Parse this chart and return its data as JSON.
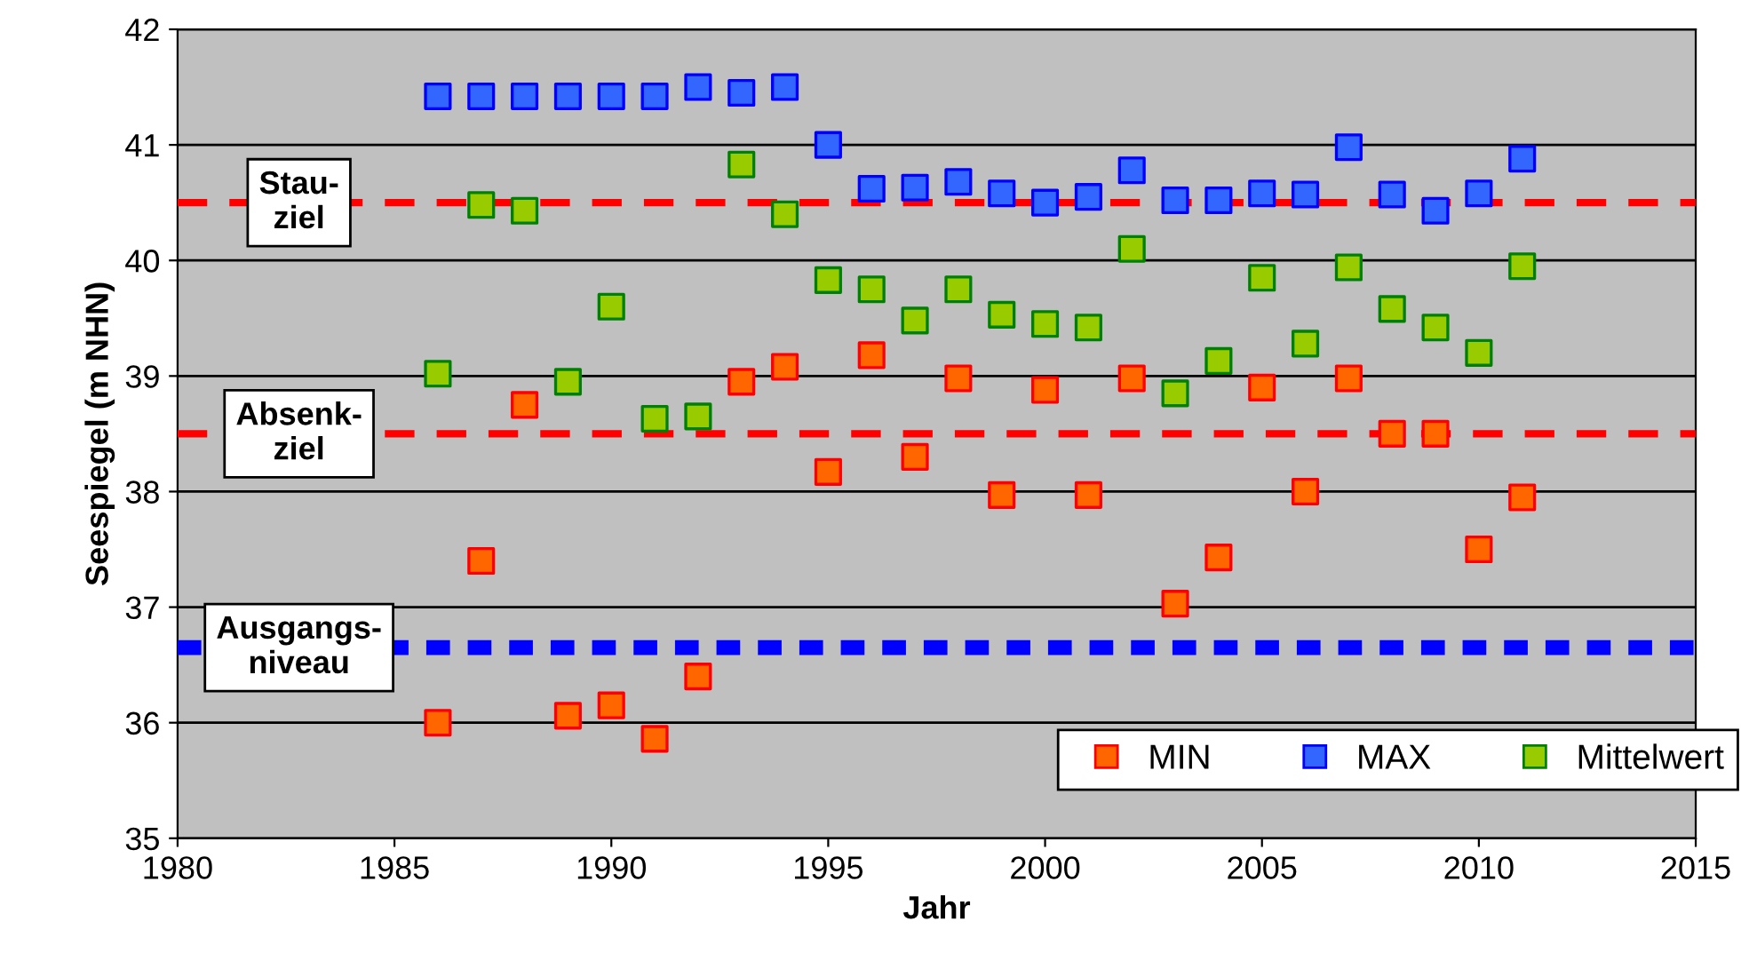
{
  "chart_data": {
    "type": "scatter",
    "xlabel": "Jahr",
    "ylabel": "Seespiegel (m NHN)",
    "x": [
      1986,
      1987,
      1988,
      1989,
      1990,
      1991,
      1992,
      1993,
      1994,
      1995,
      1996,
      1997,
      1998,
      1999,
      2000,
      2001,
      2002,
      2003,
      2004,
      2005,
      2006,
      2007,
      2008,
      2009,
      2010,
      2011
    ],
    "series": [
      {
        "name": "MIN",
        "color": "#ff6600",
        "values": [
          36.0,
          37.4,
          38.75,
          36.06,
          36.15,
          35.86,
          36.4,
          38.95,
          39.08,
          38.17,
          39.18,
          38.3,
          38.98,
          37.97,
          38.88,
          37.97,
          38.98,
          37.03,
          37.43,
          38.9,
          38.0,
          38.98,
          38.5,
          38.5,
          37.5,
          37.95
        ]
      },
      {
        "name": "MAX",
        "color": "#3366ff",
        "values": [
          41.42,
          41.42,
          41.42,
          41.42,
          41.42,
          41.42,
          41.5,
          41.45,
          41.5,
          41.0,
          40.62,
          40.63,
          40.68,
          40.58,
          40.5,
          40.55,
          40.78,
          40.52,
          40.52,
          40.58,
          40.57,
          40.98,
          40.57,
          40.43,
          40.58,
          40.88
        ]
      },
      {
        "name": "Mittelwert",
        "color": "#99cc00",
        "values": [
          39.02,
          40.48,
          40.43,
          38.95,
          39.6,
          38.63,
          38.65,
          40.83,
          40.4,
          39.83,
          39.75,
          39.48,
          39.75,
          39.53,
          39.45,
          39.42,
          40.1,
          38.85,
          39.13,
          39.85,
          39.28,
          39.94,
          39.58,
          39.42,
          39.2,
          39.95
        ]
      }
    ],
    "xlim": [
      1980,
      2015
    ],
    "xticks": [
      1980,
      1985,
      1990,
      1995,
      2000,
      2005,
      2010,
      2015
    ],
    "ylim": [
      35,
      42
    ],
    "yticks": [
      35,
      36,
      37,
      38,
      39,
      40,
      41,
      42
    ],
    "ref_lines": [
      {
        "axis": "y",
        "value": 40.5,
        "label": "Stau-\nziel",
        "color": "#ff0000",
        "line_style": "dashed"
      },
      {
        "axis": "y",
        "value": 38.5,
        "label": "Absenk-\nziel",
        "color": "#ff0000",
        "line_style": "dashed"
      },
      {
        "axis": "y",
        "value": 36.65,
        "label": "Ausgangs-\nniveau",
        "color": "#0000ff",
        "line_style": "dotted"
      }
    ],
    "grid": "y",
    "legend": "bottom right",
    "marker": "square"
  }
}
